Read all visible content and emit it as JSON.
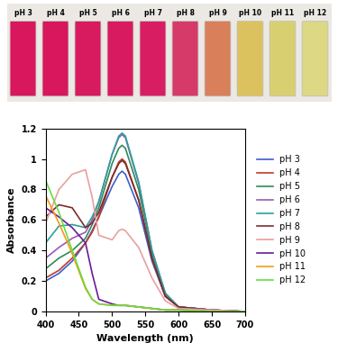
{
  "photo": {
    "labels": [
      "pH 3",
      "pH 4",
      "pH 5",
      "pH 6",
      "pH 7",
      "pH 8",
      "pH 9",
      "pH 10",
      "pH 11",
      "pH 12"
    ],
    "colors": [
      "#d8175c",
      "#d8175c",
      "#d81a5e",
      "#d81b60",
      "#d81d62",
      "#d63a68",
      "#d9805a",
      "#dcc25e",
      "#d8d070",
      "#dcd884"
    ]
  },
  "chart_data": {
    "type": "line",
    "x_label": "Wavelength (nm)",
    "y_label": "Absorbance",
    "x": [
      400,
      420,
      440,
      460,
      470,
      480,
      500,
      510,
      515,
      520,
      540,
      560,
      580,
      600,
      650,
      700
    ],
    "xlim": [
      400,
      700
    ],
    "xticks": [
      400,
      450,
      500,
      550,
      600,
      650,
      700
    ],
    "ylim": [
      0,
      1.2
    ],
    "yticks": [
      0,
      0.2,
      0.4,
      0.6,
      0.8,
      1,
      1.2
    ],
    "legend": "right",
    "series": [
      {
        "name": "pH 3",
        "color": "#3a5fcd",
        "values": [
          0.2,
          0.25,
          0.33,
          0.45,
          0.53,
          0.62,
          0.82,
          0.9,
          0.92,
          0.9,
          0.68,
          0.33,
          0.1,
          0.03,
          0.01,
          0.0
        ]
      },
      {
        "name": "pH 4",
        "color": "#c0392b",
        "values": [
          0.22,
          0.27,
          0.35,
          0.45,
          0.52,
          0.62,
          0.88,
          0.98,
          1.0,
          0.98,
          0.73,
          0.35,
          0.1,
          0.03,
          0.01,
          0.0
        ]
      },
      {
        "name": "pH 5",
        "color": "#2e8b57",
        "values": [
          0.28,
          0.35,
          0.4,
          0.48,
          0.57,
          0.68,
          0.97,
          1.07,
          1.09,
          1.07,
          0.8,
          0.38,
          0.11,
          0.03,
          0.01,
          0.0
        ]
      },
      {
        "name": "pH 6",
        "color": "#9b59b6",
        "values": [
          0.35,
          0.42,
          0.48,
          0.52,
          0.6,
          0.72,
          1.03,
          1.14,
          1.16,
          1.14,
          0.84,
          0.4,
          0.12,
          0.03,
          0.01,
          0.0
        ]
      },
      {
        "name": "pH 7",
        "color": "#2aa198",
        "values": [
          0.45,
          0.56,
          0.57,
          0.55,
          0.62,
          0.72,
          1.03,
          1.15,
          1.17,
          1.15,
          0.85,
          0.4,
          0.12,
          0.03,
          0.01,
          0.0
        ]
      },
      {
        "name": "pH 8",
        "color": "#7b2c2c",
        "values": [
          0.62,
          0.7,
          0.68,
          0.55,
          0.58,
          0.65,
          0.88,
          0.97,
          0.99,
          0.97,
          0.73,
          0.35,
          0.1,
          0.03,
          0.01,
          0.0
        ]
      },
      {
        "name": "pH 9",
        "color": "#e8a0a0",
        "values": [
          0.58,
          0.8,
          0.9,
          0.93,
          0.75,
          0.5,
          0.47,
          0.53,
          0.54,
          0.53,
          0.42,
          0.22,
          0.07,
          0.02,
          0.01,
          0.0
        ]
      },
      {
        "name": "pH 10",
        "color": "#6a1b9a",
        "values": [
          0.68,
          0.62,
          0.55,
          0.45,
          0.25,
          0.08,
          0.05,
          0.04,
          0.04,
          0.04,
          0.03,
          0.02,
          0.01,
          0.01,
          0.0,
          0.0
        ]
      },
      {
        "name": "pH 11",
        "color": "#f39c12",
        "values": [
          0.76,
          0.58,
          0.38,
          0.15,
          0.08,
          0.05,
          0.04,
          0.04,
          0.04,
          0.04,
          0.03,
          0.02,
          0.01,
          0.01,
          0.0,
          0.0
        ]
      },
      {
        "name": "pH 12",
        "color": "#66dd44",
        "values": [
          0.86,
          0.65,
          0.4,
          0.16,
          0.08,
          0.05,
          0.04,
          0.04,
          0.04,
          0.04,
          0.03,
          0.02,
          0.01,
          0.01,
          0.0,
          0.0
        ]
      }
    ]
  }
}
